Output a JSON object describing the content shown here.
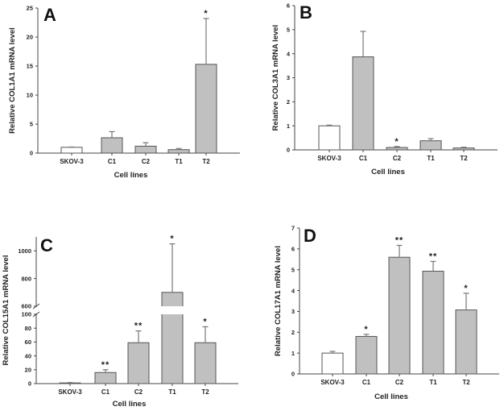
{
  "chart_data": [
    {
      "type": "bar",
      "panel": "A",
      "title": "",
      "xlabel": "Cell lines",
      "ylabel": "Relative COL1A1 mRNA level",
      "categories": [
        "SKOV-3",
        "C1",
        "C2",
        "T1",
        "T2"
      ],
      "values": [
        1.0,
        2.65,
        1.2,
        0.6,
        15.3
      ],
      "error_upper": [
        1.05,
        3.7,
        1.8,
        0.8,
        23.2
      ],
      "significance": [
        "",
        "",
        "",
        "",
        "*"
      ],
      "bar_colors": [
        "#ffffff",
        "#c0c0c0",
        "#c0c0c0",
        "#c0c0c0",
        "#c0c0c0"
      ],
      "ylim": [
        0,
        25
      ],
      "yticks": [
        0,
        5,
        10,
        15,
        20,
        25
      ],
      "grid": false
    },
    {
      "type": "bar",
      "panel": "B",
      "title": "",
      "xlabel": "Cell lines",
      "ylabel": "Relative COL3A1 mRNA level",
      "categories": [
        "SKOV-3",
        "C1",
        "C2",
        "T1",
        "T2"
      ],
      "values": [
        1.0,
        3.87,
        0.1,
        0.38,
        0.08
      ],
      "error_upper": [
        1.03,
        4.93,
        0.14,
        0.47,
        0.11
      ],
      "significance": [
        "",
        "",
        "*",
        "",
        ""
      ],
      "bar_colors": [
        "#ffffff",
        "#c0c0c0",
        "#c0c0c0",
        "#c0c0c0",
        "#c0c0c0"
      ],
      "ylim": [
        0,
        6
      ],
      "yticks": [
        0,
        1,
        2,
        3,
        4,
        5,
        6
      ],
      "grid": false
    },
    {
      "type": "bar",
      "panel": "C",
      "title": "",
      "xlabel": "Cell lines",
      "ylabel": "Relative COL15A1 mRNA level",
      "categories": [
        "SKOV-3",
        "C1",
        "C2",
        "T1",
        "T2"
      ],
      "values": [
        1.0,
        16,
        59,
        700,
        59
      ],
      "error_upper": [
        1.5,
        20,
        76,
        1050,
        82
      ],
      "significance": [
        "",
        "**",
        "**",
        "*",
        "*"
      ],
      "bar_colors": [
        "#c0c0c0",
        "#c0c0c0",
        "#c0c0c0",
        "#c0c0c0",
        "#c0c0c0"
      ],
      "axis_break": true,
      "ylim_lower": [
        0,
        100
      ],
      "ylim_upper": [
        600,
        1100
      ],
      "yticks_lower": [
        0,
        20,
        40,
        60,
        80,
        100
      ],
      "yticks_upper": [
        600,
        800,
        1000
      ],
      "grid": false
    },
    {
      "type": "bar",
      "panel": "D",
      "title": "",
      "xlabel": "Cell lines",
      "ylabel": "Relative COL17A1 mRNA level",
      "categories": [
        "SKOV-3",
        "C1",
        "C2",
        "T1",
        "T2"
      ],
      "values": [
        1.0,
        1.8,
        5.6,
        4.93,
        3.07
      ],
      "error_upper": [
        1.08,
        1.9,
        6.17,
        5.4,
        3.87
      ],
      "significance": [
        "",
        "*",
        "**",
        "**",
        "*"
      ],
      "bar_colors": [
        "#ffffff",
        "#c0c0c0",
        "#c0c0c0",
        "#c0c0c0",
        "#c0c0c0"
      ],
      "ylim": [
        0,
        7
      ],
      "yticks": [
        0,
        1,
        2,
        3,
        4,
        5,
        6,
        7
      ],
      "grid": false
    }
  ],
  "colors": {
    "bar_outline": "#555555",
    "axis": "#444444",
    "error_bar": "#777777"
  }
}
